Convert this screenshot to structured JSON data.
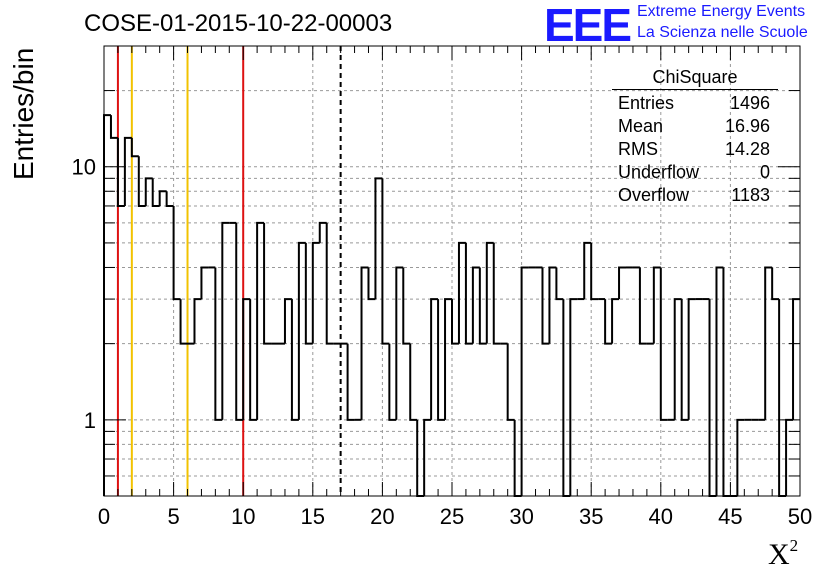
{
  "title": "COSE-01-2015-10-22-00003",
  "logo": {
    "mark": "EEE",
    "line1": "Extreme Energy Events",
    "line2": "La Scienza nelle Scuole",
    "color": "#1a1aff"
  },
  "stats": {
    "title": "ChiSquare",
    "rows": [
      {
        "label": "Entries",
        "value": "1496"
      },
      {
        "label": "Mean",
        "value": "16.96"
      },
      {
        "label": "RMS",
        "value": "14.28"
      },
      {
        "label": "Underflow",
        "value": "0"
      },
      {
        "label": "Overflow",
        "value": "1183"
      }
    ]
  },
  "chart_data": {
    "type": "histogram",
    "title": "COSE-01-2015-10-22-00003",
    "xlabel": "X",
    "xlabel_sup": "2",
    "ylabel": "Entries/bin",
    "xlim": [
      0,
      50
    ],
    "ylim": [
      0.5,
      30
    ],
    "yscale": "log",
    "grid": true,
    "bin_width": 0.5,
    "x_ticks": [
      "0",
      "5",
      "10",
      "15",
      "20",
      "25",
      "30",
      "35",
      "40",
      "45",
      "50"
    ],
    "y_ticks": [
      {
        "value": 1,
        "label": "1"
      },
      {
        "value": 10,
        "label": "10"
      }
    ],
    "counts": [
      16,
      13,
      7,
      13,
      11,
      7,
      9,
      7,
      8,
      7,
      3,
      2,
      2,
      3,
      4,
      4,
      1,
      6,
      6,
      1,
      3,
      1,
      6,
      2,
      2,
      2,
      3,
      1,
      5,
      2,
      5,
      6,
      2,
      2,
      2,
      1,
      1,
      4,
      3,
      9,
      2,
      1,
      4,
      2,
      1,
      0,
      1,
      3,
      1,
      3,
      2,
      5,
      2,
      4,
      2,
      5,
      2,
      2,
      1,
      0,
      4,
      4,
      4,
      2,
      4,
      3,
      0,
      3,
      3,
      5,
      3,
      3,
      2,
      3,
      4,
      4,
      4,
      2,
      2,
      4,
      1,
      1,
      3,
      1,
      3,
      3,
      3,
      0,
      4,
      0,
      0,
      1,
      1,
      1,
      1,
      4,
      3,
      0,
      1,
      3
    ],
    "vertical_lines": [
      {
        "x": 1,
        "color": "#dd1111",
        "style": "solid"
      },
      {
        "x": 2,
        "color": "#f2c200",
        "style": "solid"
      },
      {
        "x": 6,
        "color": "#f2c200",
        "style": "solid"
      },
      {
        "x": 10,
        "color": "#dd1111",
        "style": "solid"
      },
      {
        "x": 17,
        "color": "#000000",
        "style": "dashed"
      }
    ],
    "line_color": "#000000"
  }
}
